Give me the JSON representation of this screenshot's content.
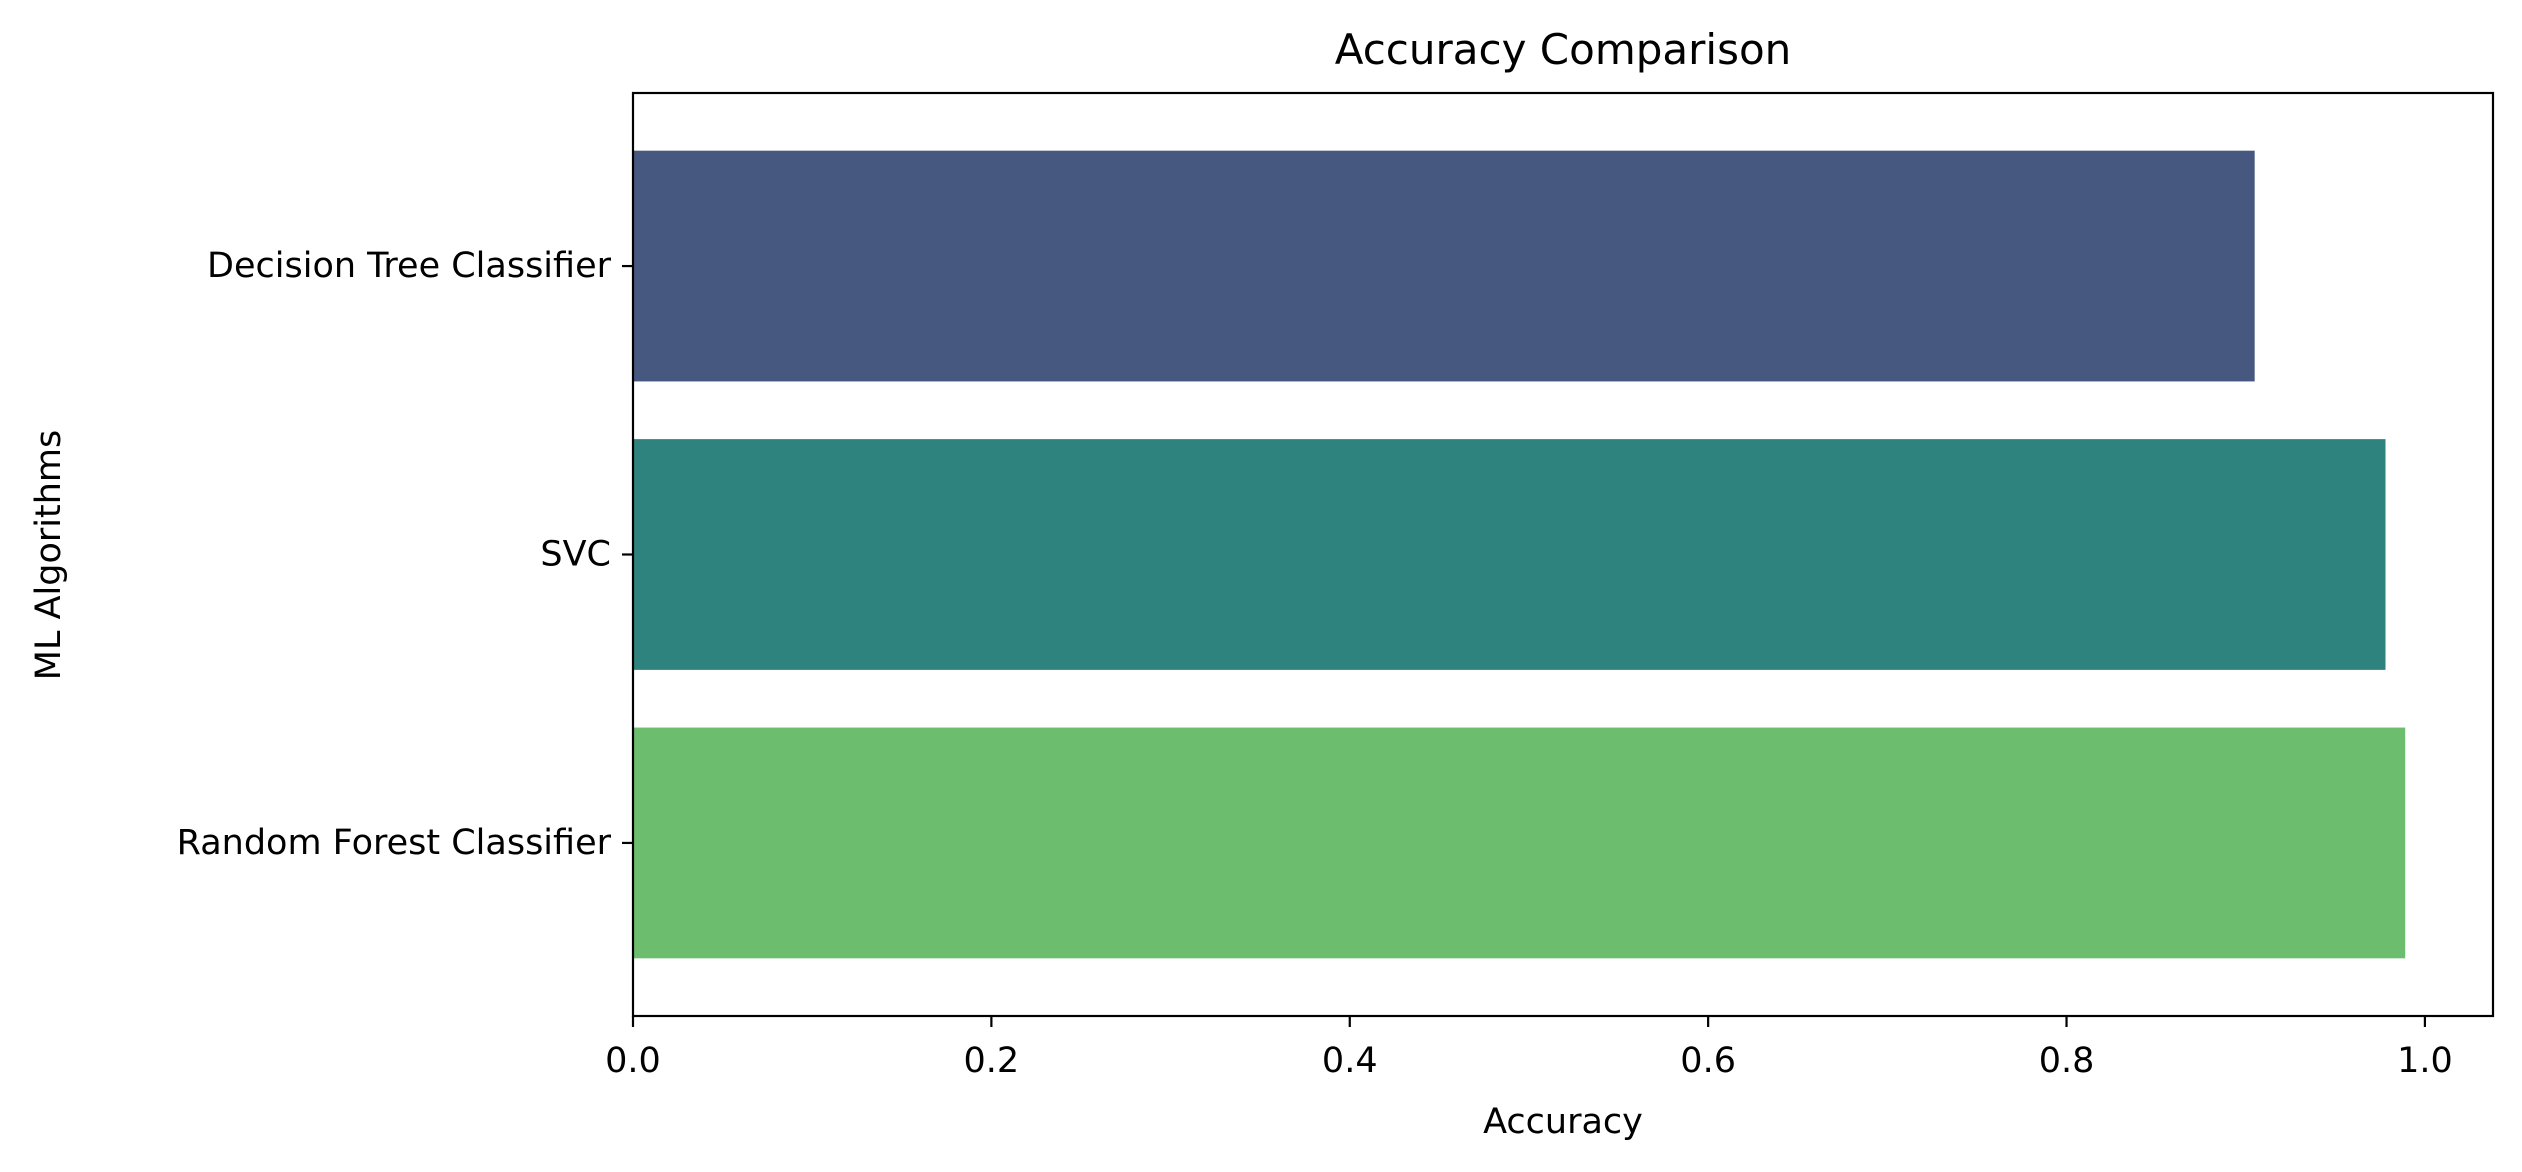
{
  "chart_data": {
    "type": "bar",
    "orientation": "horizontal",
    "title": "Accuracy Comparison",
    "xlabel": "Accuracy",
    "ylabel": "ML Algorithms",
    "categories": [
      "Decision Tree Classifier",
      "SVC",
      "Random Forest Classifier"
    ],
    "values": [
      0.905,
      0.978,
      0.989
    ],
    "colors": [
      "#46587f",
      "#2e837e",
      "#6cbd6d"
    ],
    "xlim": [
      0.0,
      1.038
    ],
    "xticks": [
      0.0,
      0.2,
      0.4,
      0.6,
      0.8,
      1.0
    ],
    "xtick_labels": [
      "0.0",
      "0.2",
      "0.4",
      "0.6",
      "0.8",
      "1.0"
    ],
    "grid": false,
    "legend": "none"
  }
}
